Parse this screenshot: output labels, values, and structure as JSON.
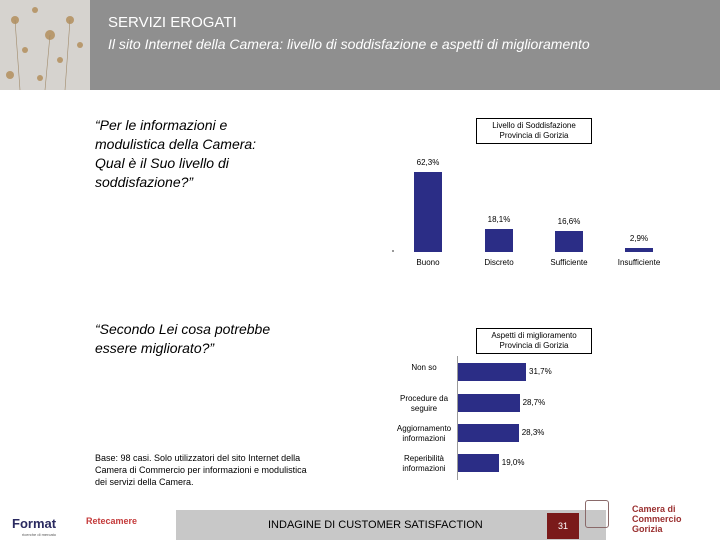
{
  "header": {
    "title": "SERVIZI EROGATI",
    "subtitle": "Il sito Internet della Camera: livello di soddisfazione e aspetti di miglioramento"
  },
  "question1": {
    "text": "“Per le informazioni e modulistica della Camera: Qual è il Suo livello di soddisfazione?”"
  },
  "question2": {
    "text": "“Secondo Lei cosa potrebbe essere migliorato?”"
  },
  "base_note": "Base: 98 casi. Solo utilizzatori del sito Internet della Camera di Commercio per informazioni e modulistica dei servizi della Camera.",
  "chart_data": [
    {
      "type": "bar",
      "title": "Livello di Soddisfazione Provincia di Gorizia",
      "categories": [
        "Buono",
        "Discreto",
        "Sufficiente",
        "Insufficiente"
      ],
      "values": [
        62.3,
        18.1,
        16.6,
        2.9
      ],
      "value_labels": [
        "62,3%",
        "18,1%",
        "16,6%",
        "2,9%"
      ],
      "color": "#2b2d86"
    },
    {
      "type": "bar",
      "orientation": "horizontal",
      "title": "Aspetti di miglioramento Provincia di Gorizia",
      "categories": [
        "Non so",
        "Procedure da seguire",
        "Aggiornamento informazioni",
        "Reperibilità informazioni"
      ],
      "values": [
        31.7,
        28.7,
        28.3,
        19.0
      ],
      "value_labels": [
        "31,7%",
        "28,7%",
        "28,3%",
        "19,0%"
      ],
      "color": "#2b2d86"
    }
  ],
  "footer": {
    "text": "INDAGINE DI CUSTOMER SATISFACTION",
    "page": "31",
    "logo_left": "Format",
    "logo_left_sub": "ricerche di mercato",
    "logo_mid": "Retecamere",
    "logo_right_line1": "Camera di Commercio",
    "logo_right_line2": "Gorizia"
  }
}
